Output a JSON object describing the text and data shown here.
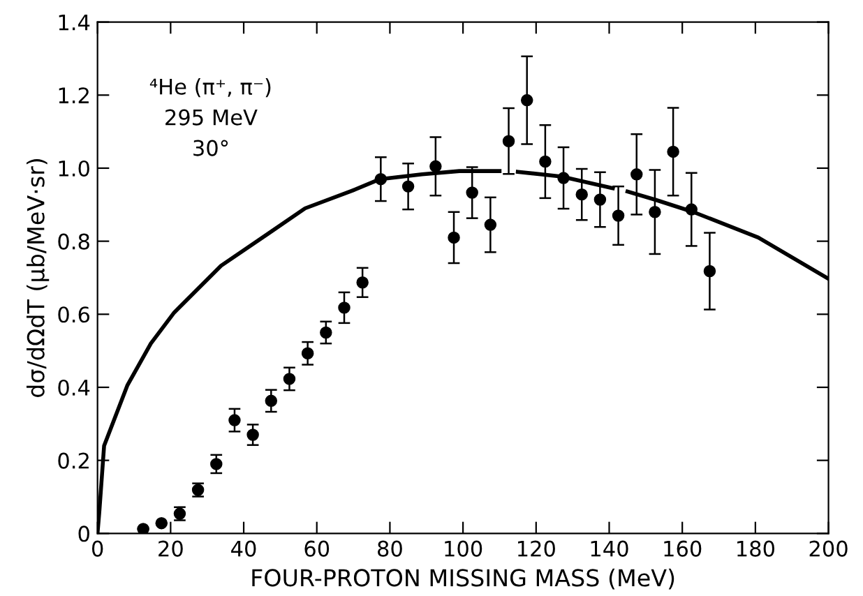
{
  "chart_data": {
    "type": "scatter",
    "xlabel": "FOUR-PROTON MISSING MASS (MeV)",
    "ylabel": "dσ/dΩdT (μb/MeV·sr)",
    "annotations": [
      "⁴He (π⁺, π⁻)",
      "295 MeV",
      "30°"
    ],
    "xlim": [
      0,
      200
    ],
    "xticks": [
      0,
      20,
      40,
      60,
      80,
      100,
      120,
      140,
      160,
      180,
      200
    ],
    "ylim": [
      0,
      1.4
    ],
    "yticks": [
      0,
      0.2,
      0.4,
      0.6,
      0.8,
      {
        "value": 1.0,
        "label": "1.0"
      },
      1.2,
      1.4
    ],
    "grid": false,
    "series": [
      {
        "color": "#000000",
        "marker": "circle",
        "x": [
          12.5,
          17.5,
          22.5,
          27.5,
          32.5,
          37.5,
          42.5,
          47.5,
          52.5,
          57.5,
          62.5,
          67.5,
          72.5,
          77.5,
          85,
          92.5,
          97.5,
          102.5,
          107.5,
          112.5,
          117.5,
          122.5,
          127.5,
          132.5,
          137.5,
          142.5,
          147.5,
          152.5,
          157.5,
          162.5,
          167.5
        ],
        "values": [
          0.012,
          0.028,
          0.054,
          0.119,
          0.19,
          0.31,
          0.27,
          0.363,
          0.423,
          0.493,
          0.55,
          0.618,
          0.687,
          0.97,
          0.95,
          1.005,
          0.81,
          0.933,
          0.845,
          1.074,
          1.186,
          1.018,
          0.973,
          0.928,
          0.914,
          0.87,
          0.983,
          0.88,
          1.045,
          0.887,
          0.718
        ],
        "errors": [
          null,
          null,
          0.018,
          0.018,
          0.025,
          0.031,
          0.028,
          0.03,
          0.031,
          0.031,
          0.03,
          0.042,
          0.04,
          0.06,
          0.063,
          0.08,
          0.07,
          0.07,
          0.075,
          0.09,
          0.12,
          0.1,
          0.084,
          0.07,
          0.075,
          0.08,
          0.11,
          0.115,
          0.12,
          0.1,
          0.105
        ]
      },
      {
        "type": "line",
        "color": "#000000",
        "marker": "none",
        "line_style": "solid",
        "x": [
          0,
          0.5,
          1.8,
          8.2,
          14.6,
          21,
          33.8,
          46.6,
          56.8,
          69.6,
          77.3,
          88.8,
          99,
          110,
          112.5,
          115,
          127,
          141,
          143,
          145,
          152.8,
          163,
          180.8,
          200
        ],
        "values": [
          0,
          0.06,
          0.24,
          0.406,
          0.52,
          0.605,
          0.733,
          0.82,
          0.89,
          0.938,
          0.97,
          0.983,
          0.992,
          0.992,
          null,
          0.99,
          0.977,
          0.945,
          null,
          0.936,
          0.913,
          0.88,
          0.81,
          0.697
        ]
      }
    ]
  }
}
